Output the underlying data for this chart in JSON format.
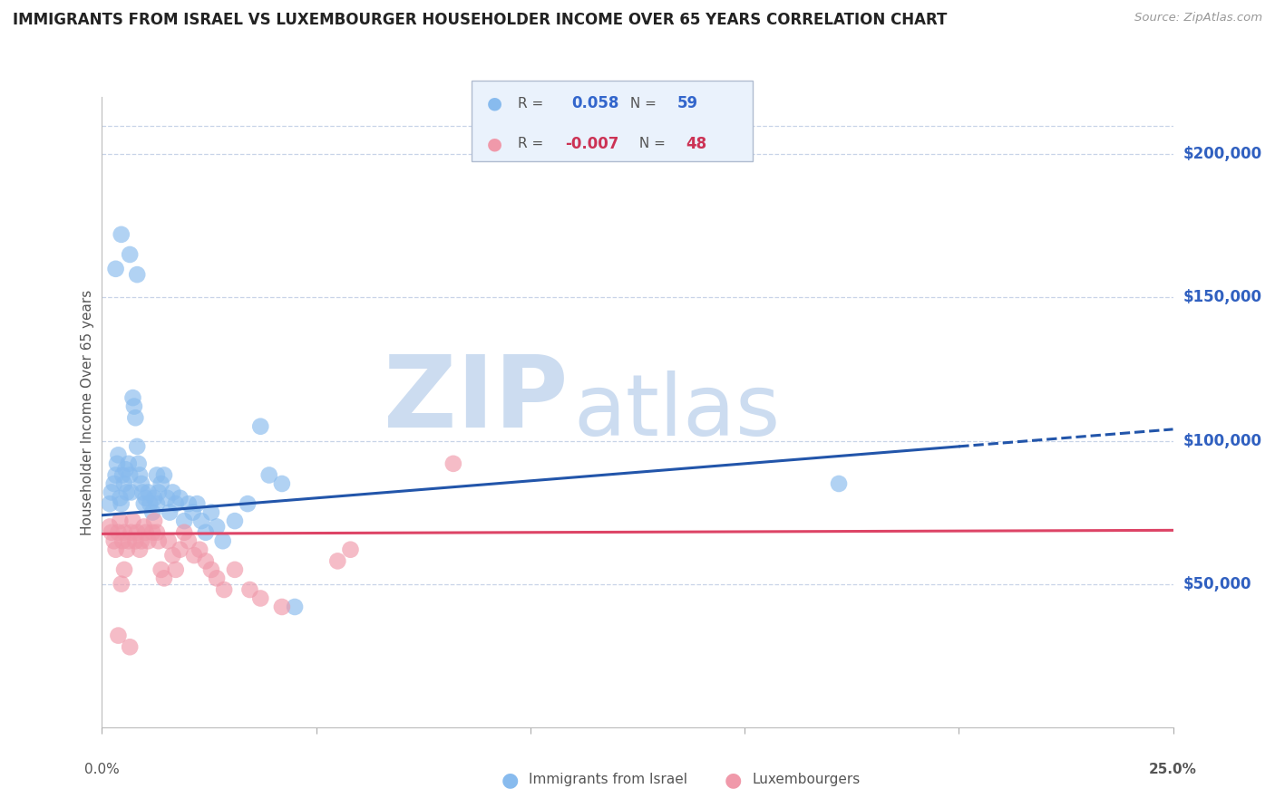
{
  "title": "IMMIGRANTS FROM ISRAEL VS LUXEMBOURGER HOUSEHOLDER INCOME OVER 65 YEARS CORRELATION CHART",
  "source": "Source: ZipAtlas.com",
  "ylabel": "Householder Income Over 65 years",
  "right_ytick_labels": [
    "$200,000",
    "$150,000",
    "$100,000",
    "$50,000"
  ],
  "right_ytick_values": [
    200000,
    150000,
    100000,
    50000
  ],
  "watermark_zip": "ZIP",
  "watermark_atlas": "atlas",
  "watermark_color": "#ccdcf0",
  "blue_scatter_x": [
    0.18,
    0.22,
    0.28,
    0.32,
    0.35,
    0.38,
    0.42,
    0.45,
    0.48,
    0.52,
    0.55,
    0.58,
    0.62,
    0.65,
    0.68,
    0.72,
    0.75,
    0.78,
    0.82,
    0.85,
    0.88,
    0.92,
    0.95,
    0.98,
    1.02,
    1.08,
    1.12,
    1.18,
    1.22,
    1.28,
    1.32,
    1.38,
    1.45,
    1.52,
    1.58,
    1.65,
    1.72,
    1.82,
    1.92,
    2.02,
    2.12,
    2.22,
    2.32,
    2.42,
    2.55,
    2.68,
    2.82,
    3.1,
    3.4,
    3.7,
    3.9,
    4.2,
    4.5,
    1.28,
    0.32,
    0.45,
    0.65,
    0.82,
    17.2
  ],
  "blue_scatter_y": [
    78000,
    82000,
    85000,
    88000,
    92000,
    95000,
    80000,
    78000,
    88000,
    85000,
    90000,
    82000,
    92000,
    88000,
    82000,
    115000,
    112000,
    108000,
    98000,
    92000,
    88000,
    85000,
    82000,
    78000,
    80000,
    82000,
    78000,
    75000,
    80000,
    78000,
    82000,
    85000,
    88000,
    80000,
    75000,
    82000,
    78000,
    80000,
    72000,
    78000,
    75000,
    78000,
    72000,
    68000,
    75000,
    70000,
    65000,
    72000,
    78000,
    105000,
    88000,
    85000,
    42000,
    88000,
    160000,
    172000,
    165000,
    158000,
    85000
  ],
  "pink_scatter_x": [
    0.18,
    0.22,
    0.28,
    0.32,
    0.38,
    0.42,
    0.48,
    0.52,
    0.58,
    0.62,
    0.68,
    0.72,
    0.78,
    0.82,
    0.88,
    0.92,
    0.98,
    1.02,
    1.08,
    1.18,
    1.22,
    1.32,
    1.38,
    1.45,
    1.55,
    1.65,
    1.72,
    1.82,
    1.92,
    2.02,
    2.15,
    2.28,
    2.42,
    2.55,
    2.68,
    2.85,
    3.1,
    3.45,
    3.7,
    4.2,
    5.5,
    5.8,
    8.2,
    1.28,
    0.45,
    0.65,
    0.38,
    0.52
  ],
  "pink_scatter_y": [
    70000,
    68000,
    65000,
    62000,
    68000,
    72000,
    65000,
    68000,
    62000,
    65000,
    68000,
    72000,
    65000,
    68000,
    62000,
    65000,
    70000,
    68000,
    65000,
    68000,
    72000,
    65000,
    55000,
    52000,
    65000,
    60000,
    55000,
    62000,
    68000,
    65000,
    60000,
    62000,
    58000,
    55000,
    52000,
    48000,
    55000,
    48000,
    45000,
    42000,
    58000,
    62000,
    92000,
    68000,
    50000,
    28000,
    32000,
    55000
  ],
  "blue_line_intercept": 74000,
  "blue_line_slope": 1200,
  "blue_solid_end": 20,
  "pink_line_intercept": 67500,
  "pink_line_slope": 50,
  "xlim": [
    0,
    25
  ],
  "ylim": [
    0,
    220000
  ],
  "xtick_positions": [
    0,
    5,
    10,
    15,
    20,
    25
  ],
  "background_color": "#ffffff",
  "grid_color": "#c8d4e8",
  "title_color": "#222222",
  "right_label_color": "#3060c0",
  "scatter_blue_color": "#88bbee",
  "scatter_pink_color": "#f099aa",
  "line_blue_color": "#2255aa",
  "line_pink_color": "#dd4466",
  "legend_box_color": "#eaf2fc",
  "legend_border_color": "#b0bcd0",
  "legend_R_blue": "#3366cc",
  "legend_R_pink": "#cc3355",
  "bottom_legend_blue": "Immigrants from Israel",
  "bottom_legend_pink": "Luxembourgers"
}
